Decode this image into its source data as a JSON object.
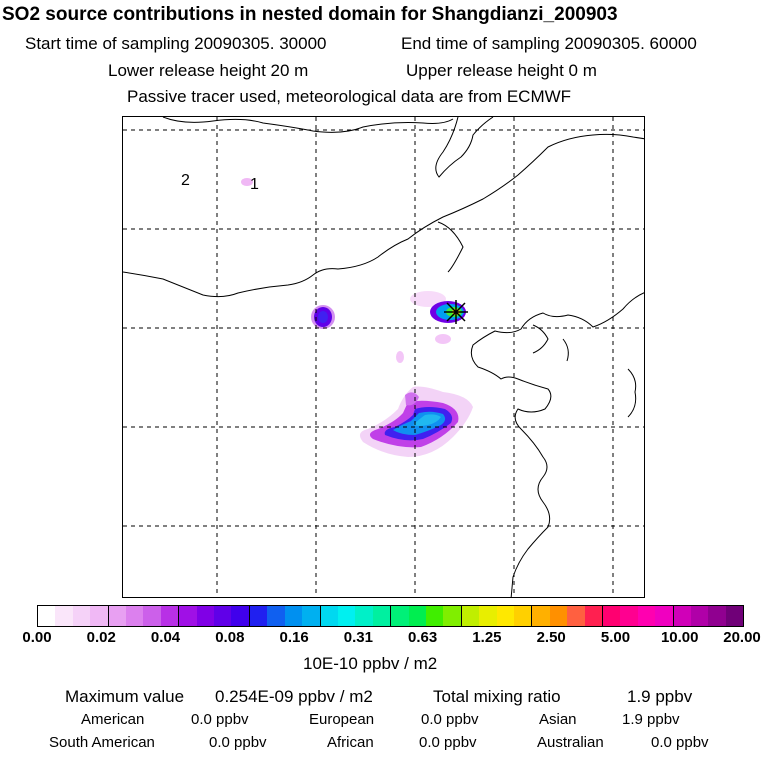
{
  "header": {
    "title": "SO2 source contributions in nested domain for Shangdianzi_200903",
    "start_label": "Start time of sampling 20090305. 30000",
    "end_label": "End time of sampling 20090305. 60000",
    "lower_label": "Lower release height   20 m",
    "upper_label": "Upper release height    0 m",
    "tracer_label": "Passive tracer used, meteorological data are from ECMWF"
  },
  "map": {
    "region_labels": [
      "2",
      "1"
    ],
    "receptor_marker": "receptor-cross-icon",
    "colors": {
      "coast": "#000000",
      "grid": "#000000"
    }
  },
  "colorbar": {
    "ticks": [
      "0.00",
      "0.02",
      "0.04",
      "0.08",
      "0.16",
      "0.31",
      "0.63",
      "1.25",
      "2.50",
      "5.00",
      "10.00",
      "20.00"
    ],
    "unit": "10E-10 ppbv / m2",
    "colors": [
      "#ffffff",
      "#fae6fa",
      "#f5d2f8",
      "#f0b8f5",
      "#e8a0f2",
      "#dc80ee",
      "#cc60ea",
      "#b830e6",
      "#a010e6",
      "#8000e6",
      "#6000e8",
      "#4000ec",
      "#2020f0",
      "#1060f0",
      "#0090f0",
      "#00b0f0",
      "#00d8f0",
      "#00f0f0",
      "#00f0c8",
      "#00f0a0",
      "#00f078",
      "#00ee50",
      "#40ee00",
      "#80ee00",
      "#c0ee00",
      "#e8ee00",
      "#ffe800",
      "#ffd000",
      "#ffb000",
      "#ff9000",
      "#ff6040",
      "#ff2050",
      "#ff0070",
      "#ff0090",
      "#ff00b0",
      "#f000c0",
      "#d000b8",
      "#b000a8",
      "#900090",
      "#700078"
    ]
  },
  "summary": {
    "max_label": "Maximum value",
    "max_value": "0.254E-09 ppbv / m2",
    "total_label": "Total mixing ratio",
    "total_value": "1.9 ppbv",
    "regions": [
      {
        "name": "American",
        "value": "0.0 ppbv"
      },
      {
        "name": "European",
        "value": "0.0 ppbv"
      },
      {
        "name": "Asian",
        "value": "1.9 ppbv"
      },
      {
        "name": "South American",
        "value": "0.0 ppbv"
      },
      {
        "name": "African",
        "value": "0.0 ppbv"
      },
      {
        "name": "Australian",
        "value": "0.0 ppbv"
      }
    ]
  }
}
